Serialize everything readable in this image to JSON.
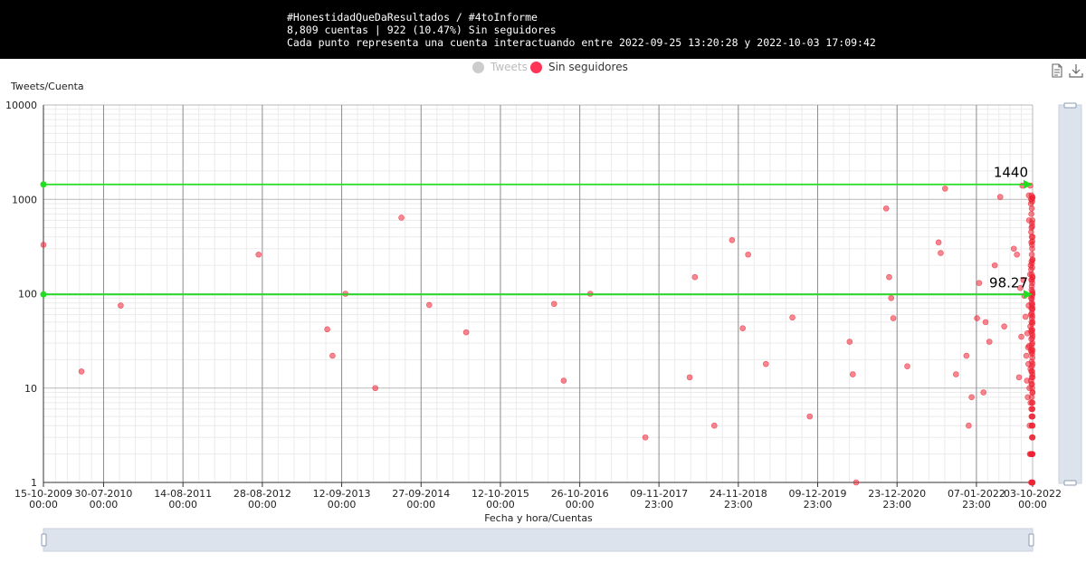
{
  "header": {
    "line1": "#HonestidadQueDaResultados / #4toInforme",
    "line2": "8,809 cuentas | 922 (10.47%) Sin seguidores",
    "line3": "Cada punto representa una cuenta interactuando entre 2022-09-25 13:20:28 y 2022-10-03 17:09:42"
  },
  "legend": [
    {
      "label": "Tweets",
      "color": "#cccccc",
      "active": false
    },
    {
      "label": "Sin seguidores",
      "color": "#ff3355",
      "active": true
    }
  ],
  "toolbox": {
    "icons": [
      "data-view-icon",
      "save-image-icon"
    ]
  },
  "colors": {
    "point": "#ee2233",
    "markline": "#22dd22",
    "axis": "#333333",
    "grid": "#d8d8d8",
    "slider": "#dde3ec"
  },
  "chart_data": {
    "type": "scatter",
    "ylabel": "Tweets/Cuenta",
    "xlabel": "Fecha y hora/Cuentas",
    "y_scale": "log",
    "ylim": [
      1,
      10000
    ],
    "y_ticks": [
      "1",
      "10",
      "100",
      "1000",
      "10000"
    ],
    "x_ticks": [
      {
        "date": "15-10-2009",
        "time": "00:00"
      },
      {
        "date": "30-07-2010",
        "time": "00:00"
      },
      {
        "date": "14-08-2011",
        "time": "00:00"
      },
      {
        "date": "28-08-2012",
        "time": "00:00"
      },
      {
        "date": "12-09-2013",
        "time": "00:00"
      },
      {
        "date": "27-09-2014",
        "time": "00:00"
      },
      {
        "date": "12-10-2015",
        "time": "00:00"
      },
      {
        "date": "26-10-2016",
        "time": "00:00"
      },
      {
        "date": "09-11-2017",
        "time": "23:00"
      },
      {
        "date": "24-11-2018",
        "time": "23:00"
      },
      {
        "date": "09-12-2019",
        "time": "23:00"
      },
      {
        "date": "23-12-2020",
        "time": "23:00"
      },
      {
        "date": "07-01-2022",
        "time": "23:00"
      },
      {
        "date": "03-10-2022",
        "time": "00:00"
      }
    ],
    "mark_lines": [
      {
        "value": 1440,
        "label": "1440"
      },
      {
        "value": 98.27,
        "label": "98.27"
      }
    ],
    "series": [
      {
        "name": "Sin seguidores",
        "points": [
          [
            "2009-10-15",
            330
          ],
          [
            "2010-04-15",
            15
          ],
          [
            "2010-10-20",
            75
          ],
          [
            "2012-08-10",
            260
          ],
          [
            "2013-07-05",
            42
          ],
          [
            "2013-07-30",
            22
          ],
          [
            "2013-09-30",
            100
          ],
          [
            "2014-02-20",
            10
          ],
          [
            "2014-06-25",
            640
          ],
          [
            "2014-11-05",
            76
          ],
          [
            "2015-05-01",
            39
          ],
          [
            "2016-06-25",
            78
          ],
          [
            "2016-08-10",
            12
          ],
          [
            "2016-12-15",
            100
          ],
          [
            "2017-09-05",
            3
          ],
          [
            "2018-04-05",
            13
          ],
          [
            "2018-04-30",
            150
          ],
          [
            "2018-08-01",
            4
          ],
          [
            "2018-10-25",
            370
          ],
          [
            "2018-12-15",
            43
          ],
          [
            "2019-01-10",
            260
          ],
          [
            "2019-04-05",
            18
          ],
          [
            "2019-08-10",
            56
          ],
          [
            "2019-11-01",
            5
          ],
          [
            "2020-05-10",
            31
          ],
          [
            "2020-05-25",
            14
          ],
          [
            "2020-06-10",
            1
          ],
          [
            "2020-11-01",
            800
          ],
          [
            "2020-11-15",
            150
          ],
          [
            "2020-11-25",
            90
          ],
          [
            "2020-12-05",
            55
          ],
          [
            "2021-02-10",
            17
          ],
          [
            "2021-07-10",
            350
          ],
          [
            "2021-07-20",
            270
          ],
          [
            "2021-08-10",
            1300
          ],
          [
            "2021-10-01",
            14
          ],
          [
            "2021-11-20",
            22
          ],
          [
            "2021-12-01",
            4
          ],
          [
            "2021-12-15",
            8
          ],
          [
            "2022-01-10",
            55
          ],
          [
            "2022-01-20",
            130
          ],
          [
            "2022-02-10",
            9
          ],
          [
            "2022-02-20",
            50
          ],
          [
            "2022-03-10",
            31
          ],
          [
            "2022-04-05",
            200
          ],
          [
            "2022-05-01",
            1060
          ],
          [
            "2022-05-20",
            45
          ],
          [
            "2022-07-05",
            300
          ],
          [
            "2022-07-20",
            260
          ],
          [
            "2022-07-30",
            13
          ],
          [
            "2022-08-05",
            115
          ],
          [
            "2022-08-10",
            35
          ],
          [
            "2022-08-15",
            1400
          ],
          [
            "2022-08-20",
            140
          ],
          [
            "2022-08-25",
            95
          ],
          [
            "2022-08-30",
            57
          ],
          [
            "2022-09-03",
            22
          ],
          [
            "2022-09-06",
            12
          ],
          [
            "2022-09-08",
            38
          ],
          [
            "2022-09-10",
            8
          ],
          [
            "2022-09-11",
            27
          ],
          [
            "2022-09-13",
            18
          ],
          [
            "2022-09-14",
            75
          ],
          [
            "2022-09-15",
            1100
          ],
          [
            "2022-09-16",
            600
          ],
          [
            "2022-09-17",
            28
          ],
          [
            "2022-09-18",
            10
          ],
          [
            "2022-09-19",
            4
          ],
          [
            "2022-09-20",
            2
          ],
          [
            "2022-09-21",
            160
          ],
          [
            "2022-09-22",
            1400
          ],
          [
            "2022-09-22",
            45
          ],
          [
            "2022-09-23",
            16
          ],
          [
            "2022-09-23",
            7
          ],
          [
            "2022-09-24",
            200
          ],
          [
            "2022-09-24",
            2
          ],
          [
            "2022-09-25",
            900
          ],
          [
            "2022-09-25",
            60
          ],
          [
            "2022-09-25",
            25
          ],
          [
            "2022-09-26",
            1000
          ],
          [
            "2022-09-26",
            450
          ],
          [
            "2022-09-26",
            180
          ],
          [
            "2022-09-26",
            90
          ],
          [
            "2022-09-26",
            40
          ],
          [
            "2022-09-26",
            12
          ],
          [
            "2022-09-26",
            1
          ],
          [
            "2022-09-27",
            700
          ],
          [
            "2022-09-27",
            350
          ],
          [
            "2022-09-27",
            140
          ],
          [
            "2022-09-27",
            70
          ],
          [
            "2022-09-27",
            33
          ],
          [
            "2022-09-27",
            15
          ],
          [
            "2022-09-27",
            6
          ],
          [
            "2022-09-27",
            2
          ],
          [
            "2022-09-28",
            1100
          ],
          [
            "2022-09-28",
            500
          ],
          [
            "2022-09-28",
            220
          ],
          [
            "2022-09-28",
            110
          ],
          [
            "2022-09-28",
            80
          ],
          [
            "2022-09-28",
            50
          ],
          [
            "2022-09-28",
            24
          ],
          [
            "2022-09-28",
            11
          ],
          [
            "2022-09-28",
            5
          ],
          [
            "2022-09-28",
            1
          ],
          [
            "2022-09-29",
            800
          ],
          [
            "2022-09-29",
            400
          ],
          [
            "2022-09-29",
            260
          ],
          [
            "2022-09-29",
            160
          ],
          [
            "2022-09-29",
            120
          ],
          [
            "2022-09-29",
            88
          ],
          [
            "2022-09-29",
            62
          ],
          [
            "2022-09-29",
            42
          ],
          [
            "2022-09-29",
            29
          ],
          [
            "2022-09-29",
            19
          ],
          [
            "2022-09-29",
            13
          ],
          [
            "2022-09-29",
            8
          ],
          [
            "2022-09-29",
            4
          ],
          [
            "2022-09-29",
            2
          ],
          [
            "2022-09-30",
            1000
          ],
          [
            "2022-09-30",
            560
          ],
          [
            "2022-09-30",
            330
          ],
          [
            "2022-09-30",
            210
          ],
          [
            "2022-09-30",
            140
          ],
          [
            "2022-09-30",
            100
          ],
          [
            "2022-09-30",
            75
          ],
          [
            "2022-09-30",
            55
          ],
          [
            "2022-09-30",
            38
          ],
          [
            "2022-09-30",
            26
          ],
          [
            "2022-09-30",
            17
          ],
          [
            "2022-09-30",
            11
          ],
          [
            "2022-09-30",
            7
          ],
          [
            "2022-09-30",
            5
          ],
          [
            "2022-09-30",
            3
          ],
          [
            "2022-09-30",
            2
          ],
          [
            "2022-09-30",
            1
          ],
          [
            "2022-10-01",
            950
          ],
          [
            "2022-10-01",
            520
          ],
          [
            "2022-10-01",
            300
          ],
          [
            "2022-10-01",
            190
          ],
          [
            "2022-10-01",
            130
          ],
          [
            "2022-10-01",
            95
          ],
          [
            "2022-10-01",
            68
          ],
          [
            "2022-10-01",
            48
          ],
          [
            "2022-10-01",
            34
          ],
          [
            "2022-10-01",
            23
          ],
          [
            "2022-10-01",
            15
          ],
          [
            "2022-10-01",
            10
          ],
          [
            "2022-10-01",
            6
          ],
          [
            "2022-10-01",
            4
          ],
          [
            "2022-10-01",
            2
          ],
          [
            "2022-10-02",
            1050
          ],
          [
            "2022-10-02",
            600
          ],
          [
            "2022-10-02",
            360
          ],
          [
            "2022-10-02",
            230
          ],
          [
            "2022-10-02",
            150
          ],
          [
            "2022-10-02",
            105
          ],
          [
            "2022-10-02",
            78
          ],
          [
            "2022-10-02",
            58
          ],
          [
            "2022-10-02",
            41
          ],
          [
            "2022-10-02",
            30
          ],
          [
            "2022-10-02",
            21
          ],
          [
            "2022-10-02",
            14
          ],
          [
            "2022-10-02",
            9
          ],
          [
            "2022-10-02",
            6
          ],
          [
            "2022-10-02",
            3
          ],
          [
            "2022-10-02",
            1
          ],
          [
            "2022-10-03",
            1050
          ],
          [
            "2022-10-03",
            400
          ],
          [
            "2022-10-03",
            230
          ],
          [
            "2022-10-03",
            150
          ],
          [
            "2022-10-03",
            100
          ],
          [
            "2022-10-03",
            70
          ],
          [
            "2022-10-03",
            50
          ],
          [
            "2022-10-03",
            36
          ],
          [
            "2022-10-03",
            25
          ],
          [
            "2022-10-03",
            18
          ],
          [
            "2022-10-03",
            13
          ],
          [
            "2022-10-03",
            9
          ],
          [
            "2022-10-03",
            7
          ],
          [
            "2022-10-03",
            5
          ],
          [
            "2022-10-03",
            4
          ],
          [
            "2022-10-03",
            3
          ],
          [
            "2022-10-03",
            2
          ],
          [
            "2022-10-03",
            1
          ]
        ]
      }
    ]
  }
}
